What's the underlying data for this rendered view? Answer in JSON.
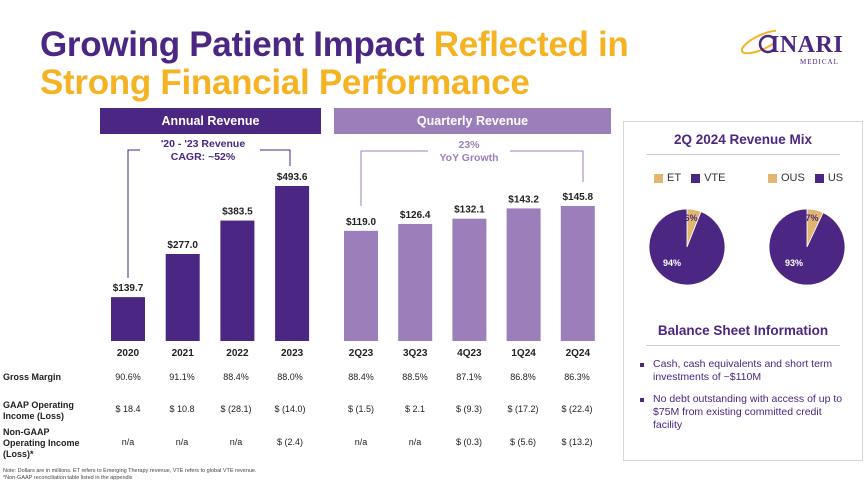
{
  "title": {
    "part1": "Growing Patient Impact",
    "part2": "Reflected in",
    "line2": "Strong Financial Performance"
  },
  "logo": {
    "name": "INARI",
    "sub": "MEDICAL"
  },
  "colors": {
    "purple": "#4b2682",
    "light_purple": "#9c7fba",
    "gold": "#f5b323",
    "pie_gold": "#e2b66e"
  },
  "annual_header": "Annual Revenue",
  "quarterly_header": "Quarterly Revenue",
  "annual_callout": {
    "line1": "'20 - '23 Revenue",
    "line2": "CAGR: ~52%"
  },
  "quarterly_callout": {
    "line1": "23%",
    "line2": "YoY Growth"
  },
  "chart_data": [
    {
      "type": "bar",
      "title": "Annual Revenue",
      "categories": [
        "2020",
        "2021",
        "2022",
        "2023"
      ],
      "values": [
        139.7,
        277.0,
        383.5,
        493.6
      ],
      "labels": [
        "$139.7",
        "$277.0",
        "$383.5",
        "$493.6"
      ]
    },
    {
      "type": "bar",
      "title": "Quarterly Revenue",
      "categories": [
        "2Q23",
        "3Q23",
        "4Q23",
        "1Q24",
        "2Q24"
      ],
      "values": [
        119.0,
        126.4,
        132.1,
        143.2,
        145.8
      ],
      "labels": [
        "$119.0",
        "$126.4",
        "$132.1",
        "$143.2",
        "$145.8"
      ]
    },
    {
      "type": "pie",
      "title": "2Q 2024 Revenue Mix",
      "series": [
        {
          "name": "ET",
          "value": 6
        },
        {
          "name": "VTE",
          "value": 94
        }
      ],
      "labels": [
        "6%",
        "94%"
      ]
    },
    {
      "type": "pie",
      "title": "2Q 2024 Revenue Mix",
      "series": [
        {
          "name": "OUS",
          "value": 7
        },
        {
          "name": "US",
          "value": 93
        }
      ],
      "labels": [
        "7%",
        "93%"
      ]
    }
  ],
  "mix_panel": {
    "title": "2Q 2024 Revenue Mix",
    "legend1": [
      "ET",
      "VTE"
    ],
    "legend2": [
      "OUS",
      "US"
    ]
  },
  "balance": {
    "title": "Balance Sheet Information",
    "bullets": [
      "Cash, cash equivalents and short term investments of ~$110M",
      "No debt outstanding with access of up to $75M from existing committed credit facility"
    ]
  },
  "table": {
    "rows": [
      {
        "label": "Gross Margin",
        "values": [
          "90.6%",
          "91.1%",
          "88.4%",
          "88.0%",
          "88.4%",
          "88.5%",
          "87.1%",
          "86.8%",
          "86.3%"
        ]
      },
      {
        "label": "GAAP Operating Income (Loss)",
        "values": [
          "$ 18.4",
          "$ 10.8",
          "$ (28.1)",
          "$ (14.0)",
          "$ (1.5)",
          "$ 2.1",
          "$ (9.3)",
          "$ (17.2)",
          "$ (22.4)"
        ]
      },
      {
        "label": "Non-GAAP Operating Income (Loss)*",
        "values": [
          "n/a",
          "n/a",
          "n/a",
          "$ (2.4)",
          "n/a",
          "n/a",
          "$ (0.3)",
          "$ (5.6)",
          "$ (13.2)"
        ]
      }
    ]
  },
  "footnotes": [
    "Note: Dollars are in millions. ET refers to Emerging Therapy revenue, VTE refers to global VTE revenue.",
    "*Non-GAAP reconciliation table listed in the appendix"
  ]
}
